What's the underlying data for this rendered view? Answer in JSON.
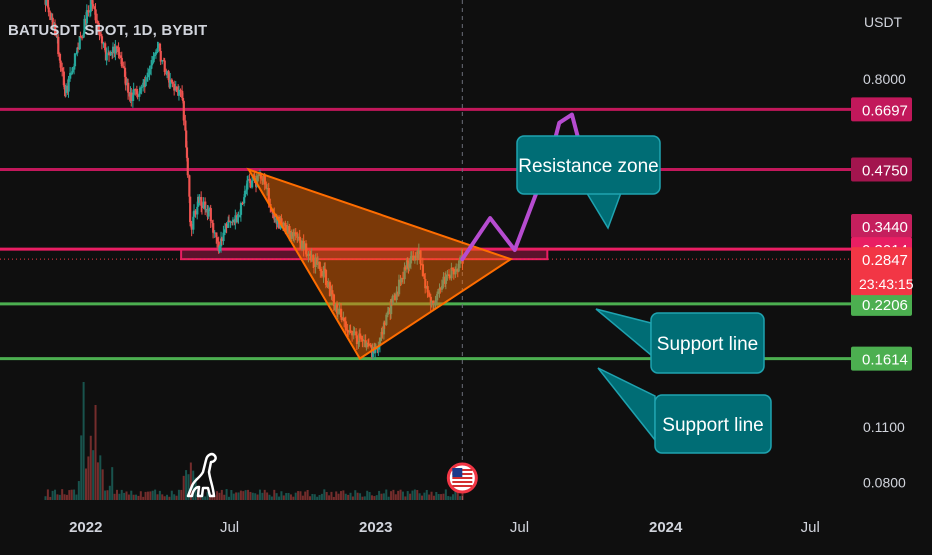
{
  "header": {
    "title": "BATUSDT SPOT, 1D, BYBIT",
    "currency": "USDT"
  },
  "colors": {
    "background": "#0f0f0f",
    "candle_up": "#26a69a",
    "candle_down": "#ef5350",
    "support": "#4caf50",
    "resistance": "#c2185b",
    "resistance_zone": "#e91e63",
    "triangle": "#ff6d00",
    "projection": "#b64cd0",
    "callout_fill": "#006d75",
    "callout_stroke": "#1fa3b0",
    "last_price": "#f23645"
  },
  "chart_data": {
    "type": "candlestick",
    "title": "BATUSDT SPOT, 1D, BYBIT",
    "yscale": "log",
    "ylim": [
      0.072,
      1.25
    ],
    "xlim": [
      "2021-09-15",
      "2024-08-15"
    ],
    "grid": false,
    "x_ticks": [
      {
        "label": "2022",
        "date": "2022-01-01",
        "bold": true
      },
      {
        "label": "Jul",
        "date": "2022-07-01",
        "bold": false
      },
      {
        "label": "2023",
        "date": "2023-01-01",
        "bold": true
      },
      {
        "label": "Jul",
        "date": "2023-07-01",
        "bold": false
      },
      {
        "label": "2024",
        "date": "2024-01-01",
        "bold": true
      },
      {
        "label": "Jul",
        "date": "2024-07-01",
        "bold": false
      }
    ],
    "y_ticks": [
      0.8,
      0.11,
      0.08
    ],
    "y_tick_labels": [
      "0.8000",
      "0.1100",
      "0.0800"
    ],
    "price_path": [
      [
        "2021-11-10",
        1.25
      ],
      [
        "2021-11-25",
        1.0
      ],
      [
        "2021-12-05",
        0.72
      ],
      [
        "2021-12-20",
        0.95
      ],
      [
        "2022-01-08",
        1.25
      ],
      [
        "2022-01-25",
        0.9
      ],
      [
        "2022-02-10",
        0.95
      ],
      [
        "2022-02-25",
        0.72
      ],
      [
        "2022-03-15",
        0.76
      ],
      [
        "2022-03-31",
        0.98
      ],
      [
        "2022-04-15",
        0.78
      ],
      [
        "2022-05-02",
        0.72
      ],
      [
        "2022-05-07",
        0.52
      ],
      [
        "2022-05-12",
        0.34
      ],
      [
        "2022-05-22",
        0.4
      ],
      [
        "2022-06-05",
        0.37
      ],
      [
        "2022-06-16",
        0.3
      ],
      [
        "2022-06-25",
        0.35
      ],
      [
        "2022-07-10",
        0.36
      ],
      [
        "2022-07-22",
        0.44
      ],
      [
        "2022-08-12",
        0.45
      ],
      [
        "2022-08-25",
        0.36
      ],
      [
        "2022-09-15",
        0.33
      ],
      [
        "2022-10-10",
        0.29
      ],
      [
        "2022-10-28",
        0.26
      ],
      [
        "2022-11-09",
        0.22
      ],
      [
        "2022-11-25",
        0.19
      ],
      [
        "2022-12-10",
        0.18
      ],
      [
        "2022-12-30",
        0.165
      ],
      [
        "2023-01-20",
        0.22
      ],
      [
        "2023-02-10",
        0.28
      ],
      [
        "2023-02-22",
        0.3
      ],
      [
        "2023-03-10",
        0.22
      ],
      [
        "2023-03-25",
        0.25
      ],
      [
        "2023-04-10",
        0.27
      ],
      [
        "2023-04-20",
        0.2847
      ]
    ],
    "last_price": 0.2847,
    "countdown": "23:43:15",
    "price_labels": [
      {
        "value": 0.6697,
        "text": "0.6697",
        "color": "#c2185b",
        "role": "resistance"
      },
      {
        "value": 0.475,
        "text": "0.4750",
        "color": "#a3154e",
        "role": "resistance"
      },
      {
        "value": 0.344,
        "text": "0.3440",
        "color": "#c51f5d",
        "role": "resistance"
      },
      {
        "value": 0.3014,
        "text": "0.3014",
        "color": "#e91e63",
        "role": "resistance"
      },
      {
        "value": 0.2206,
        "text": "0.2206",
        "color": "#4caf50",
        "role": "support"
      },
      {
        "value": 0.1614,
        "text": "0.1614",
        "color": "#4caf50",
        "role": "support"
      }
    ],
    "horizontal_lines": [
      {
        "value": 0.6697,
        "color": "#c2185b"
      },
      {
        "value": 0.475,
        "color": "#c2185b"
      },
      {
        "value": 0.3014,
        "color": "#e91e63"
      },
      {
        "value": 0.2206,
        "color": "#4caf50"
      },
      {
        "value": 0.1614,
        "color": "#4caf50"
      }
    ],
    "resistance_zone": {
      "from": "2022-05-01",
      "to": "2023-08-05",
      "low": 0.2847,
      "high": 0.3014
    },
    "triangle": [
      [
        "2022-07-25",
        0.475
      ],
      [
        "2023-06-20",
        0.2847
      ],
      [
        "2022-12-12",
        0.1614
      ]
    ],
    "projection_path": [
      [
        "2023-04-20",
        0.2847
      ],
      [
        "2023-05-25",
        0.36
      ],
      [
        "2023-06-25",
        0.3
      ],
      [
        "2023-08-10",
        0.52
      ],
      [
        "2023-08-20",
        0.62
      ],
      [
        "2023-09-05",
        0.65
      ],
      [
        "2023-09-25",
        0.46
      ]
    ],
    "annotations": [
      {
        "text": "Resistance zone"
      },
      {
        "text": "Support line"
      },
      {
        "text": "Support line"
      }
    ]
  }
}
